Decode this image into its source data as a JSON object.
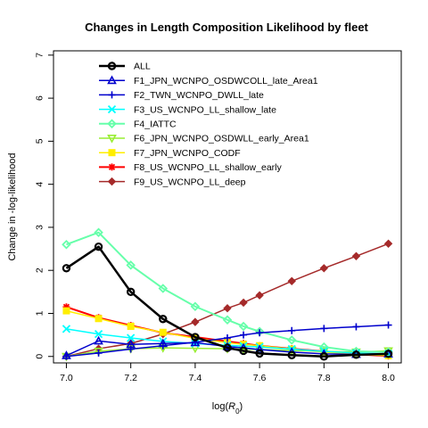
{
  "chart_data": {
    "type": "line",
    "title": "Changes in Length Composition Likelihood by fleet",
    "xlabel": "log(R0)",
    "ylabel": "Change in -log-likelihood",
    "xlim": [
      6.96,
      8.04
    ],
    "ylim": [
      -0.15,
      7.1
    ],
    "xticks": [
      7.0,
      7.2,
      7.4,
      7.6,
      7.8,
      8.0
    ],
    "xtick_labels": [
      "7.0",
      "7.2",
      "7.4",
      "7.6",
      "7.8",
      "8.0"
    ],
    "yticks": [
      0,
      1,
      2,
      3,
      4,
      5,
      6,
      7
    ],
    "ytick_labels": [
      "0",
      "1",
      "2",
      "3",
      "4",
      "5",
      "6",
      "7"
    ],
    "legend_position": "top-center",
    "grid": false,
    "x": [
      7.0,
      7.1,
      7.2,
      7.3,
      7.4,
      7.5,
      7.55,
      7.6,
      7.7,
      7.8,
      7.9,
      8.0
    ],
    "series": [
      {
        "name": "ALL",
        "color": "#000000",
        "marker": "circle-open",
        "width": 2.5,
        "values": [
          2.05,
          2.55,
          1.5,
          0.87,
          0.45,
          0.2,
          0.13,
          0.07,
          0.03,
          0.0,
          0.04,
          0.06
        ]
      },
      {
        "name": "F1_JPN_WCNPO_OSDWCOLL_late_Area1",
        "color": "#0000CD",
        "marker": "triangle",
        "width": 1.5,
        "values": [
          0.02,
          0.36,
          0.28,
          0.3,
          0.32,
          0.23,
          0.2,
          0.16,
          0.1,
          0.06,
          0.05,
          0.06
        ]
      },
      {
        "name": "F2_TWN_WCNPO_DWLL_late",
        "color": "#0000CD",
        "marker": "plus",
        "width": 1.5,
        "values": [
          0.0,
          0.08,
          0.17,
          0.25,
          0.33,
          0.43,
          0.5,
          0.55,
          0.6,
          0.65,
          0.69,
          0.73
        ]
      },
      {
        "name": "F3_US_WCNPO_LL_shallow_late",
        "color": "#00FFFF",
        "marker": "x",
        "width": 1.5,
        "values": [
          0.64,
          0.52,
          0.43,
          0.35,
          0.3,
          0.26,
          0.24,
          0.22,
          0.17,
          0.12,
          0.08,
          0.06
        ]
      },
      {
        "name": "F4_IATTC",
        "color": "#66FFAA",
        "marker": "diamond-open",
        "width": 2,
        "values": [
          2.6,
          2.88,
          2.12,
          1.58,
          1.16,
          0.85,
          0.7,
          0.58,
          0.38,
          0.22,
          0.12,
          0.1
        ]
      },
      {
        "name": "F6_JPN_WCNPO_OSDWLL_early_Area1",
        "color": "#99EE33",
        "marker": "triangle-down",
        "width": 1.5,
        "values": [
          0.0,
          0.12,
          0.18,
          0.2,
          0.19,
          0.18,
          0.17,
          0.16,
          0.14,
          0.12,
          0.1,
          0.13
        ]
      },
      {
        "name": "F7_JPN_WCNPO_CODF",
        "color": "#FFEE00",
        "marker": "square",
        "width": 1.5,
        "values": [
          1.06,
          0.88,
          0.7,
          0.56,
          0.42,
          0.32,
          0.28,
          0.25,
          0.17,
          0.1,
          0.05,
          0.02
        ]
      },
      {
        "name": "F8_US_WCNPO_LL_shallow_early",
        "color": "#FF0000",
        "marker": "star",
        "width": 2,
        "values": [
          1.15,
          0.9,
          0.72,
          0.55,
          0.45,
          0.35,
          0.3,
          0.25,
          0.18,
          0.12,
          0.05,
          0.01
        ]
      },
      {
        "name": "F9_US_WCNPO_LL_deep",
        "color": "#A52A2A",
        "marker": "diamond",
        "width": 1.5,
        "values": [
          0.0,
          0.18,
          0.3,
          0.52,
          0.8,
          1.12,
          1.25,
          1.42,
          1.75,
          2.05,
          2.33,
          2.62
        ]
      }
    ]
  }
}
